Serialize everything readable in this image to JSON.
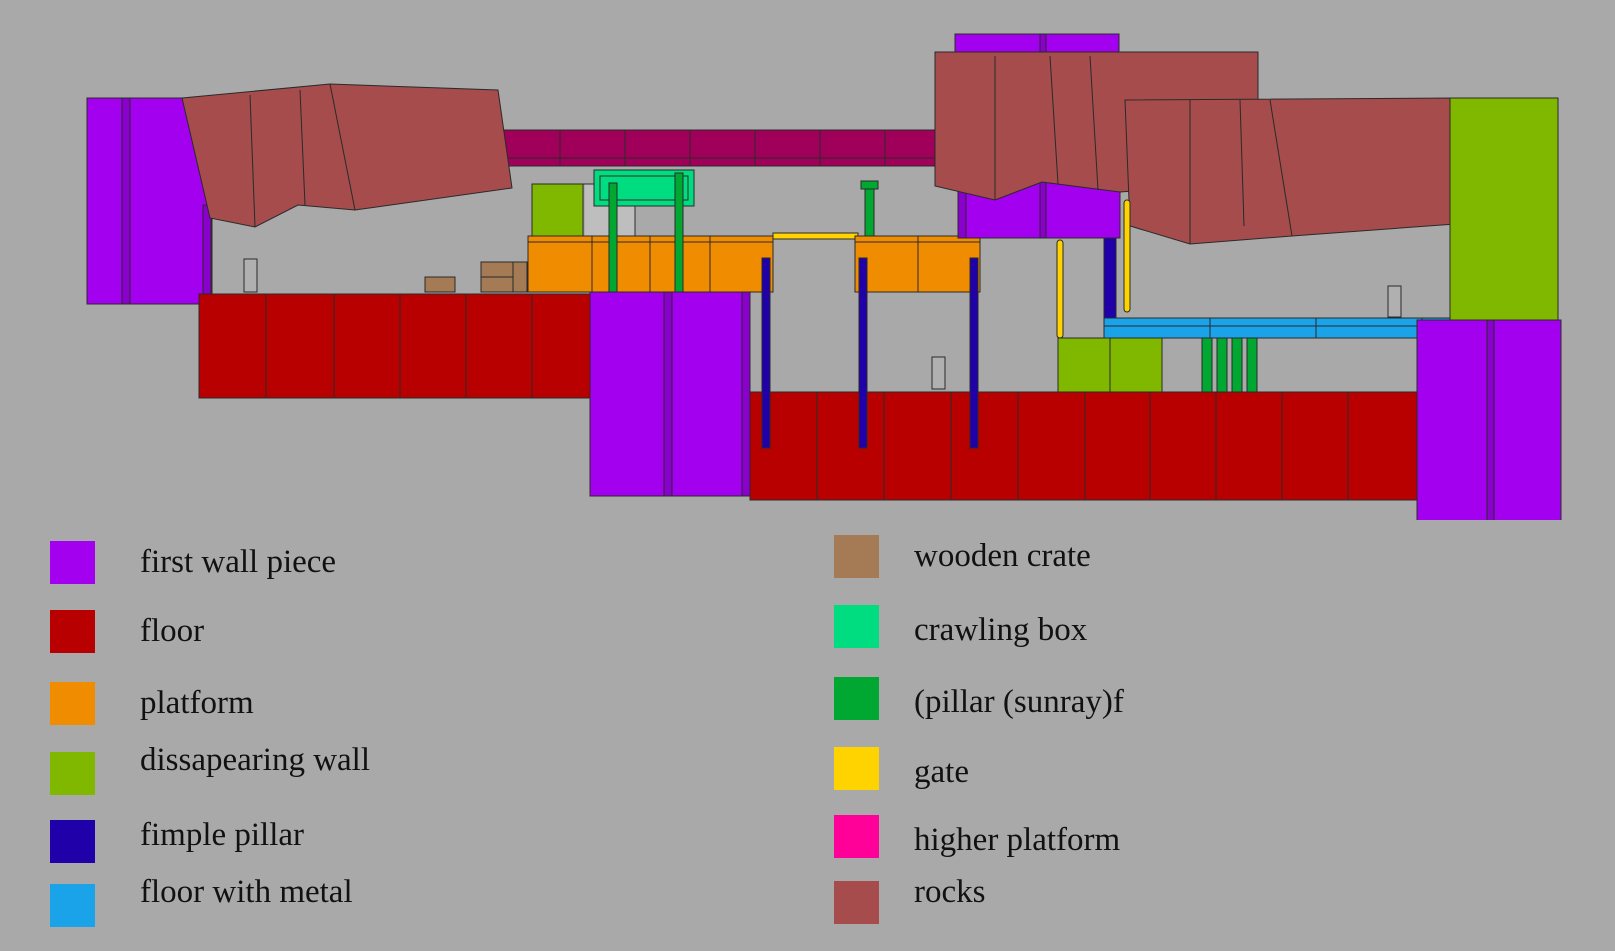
{
  "colors": {
    "background": "#a9a9a9",
    "first_wall": "#a300f0",
    "floor": "#b80000",
    "platform": "#f08c00",
    "disappearing_wall": "#80b800",
    "simple_pillar": "#2000a8",
    "floor_metal": "#1aa3e8",
    "wooden_crate": "#a47b55",
    "crawling_box": "#00dd80",
    "pillar_sunray": "#00a832",
    "gate": "#ffd300",
    "higher_platform": "#ff0099",
    "higher_platform_shaded": "#a0005a",
    "rocks": "#a64c4c"
  },
  "legend": {
    "left": [
      {
        "label": "first wall piece",
        "color_key": "first_wall"
      },
      {
        "label": "floor",
        "color_key": "floor"
      },
      {
        "label": "platform",
        "color_key": "platform"
      },
      {
        "label": "dissapearing wall",
        "color_key": "disappearing_wall"
      },
      {
        "label": "fimple pillar",
        "color_key": "simple_pillar"
      },
      {
        "label": "floor with metal",
        "color_key": "floor_metal"
      }
    ],
    "right": [
      {
        "label": "wooden crate",
        "color_key": "wooden_crate"
      },
      {
        "label": "crawling box",
        "color_key": "crawling_box"
      },
      {
        "label": "(pillar (sunray)f",
        "color_key": "pillar_sunray"
      },
      {
        "label": "gate",
        "color_key": "gate"
      },
      {
        "label": "higher platform",
        "color_key": "higher_platform"
      },
      {
        "label": "rocks",
        "color_key": "rocks"
      }
    ]
  }
}
